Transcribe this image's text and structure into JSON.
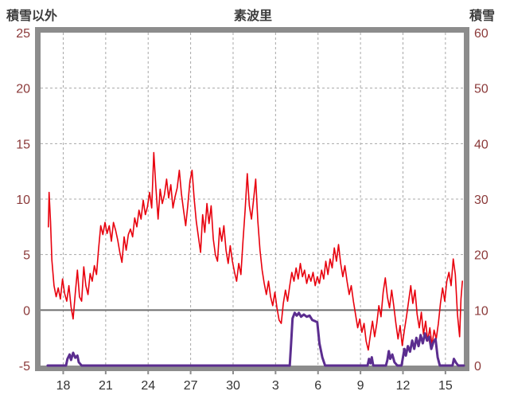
{
  "chart_data": {
    "type": "line",
    "title": "素波里",
    "left_axis": {
      "label": "積雪以外",
      "min": -5,
      "max": 25,
      "ticks": [
        25,
        20,
        15,
        10,
        5,
        0,
        -5
      ]
    },
    "right_axis": {
      "label": "積雪",
      "min": 0,
      "max": 60,
      "ticks": [
        60,
        50,
        40,
        30,
        20,
        10,
        0
      ]
    },
    "x_axis": {
      "min": 16.4,
      "max": 46.3,
      "tick_positions": [
        18,
        21,
        24,
        27,
        30,
        33,
        36,
        39,
        42,
        45
      ],
      "tick_labels": [
        "18",
        "21",
        "24",
        "27",
        "30",
        "3",
        "6",
        "9",
        "12",
        "15"
      ]
    },
    "grid": {
      "vertical": "dashed",
      "horizontal": "dashed",
      "zero_line": "solid"
    },
    "colors": {
      "frame": "#8c8c8c",
      "grid": "#a8a8a8",
      "zero_line": "#6e6e6e",
      "y_tick_text": "#8b3a3a",
      "x_tick_text": "#333333",
      "red_series": "#e8000d",
      "purple_series": "#5b2d8f"
    },
    "series": [
      {
        "name": "積雪以外",
        "data_name": "non-snow-series-line",
        "axis": "left",
        "color": "#e8000d",
        "stroke_width": 1.6,
        "points": [
          [
            16.95,
            7.5
          ],
          [
            17.0,
            10.6
          ],
          [
            17.1,
            8.0
          ],
          [
            17.2,
            4.5
          ],
          [
            17.35,
            2.2
          ],
          [
            17.5,
            1.2
          ],
          [
            17.65,
            2.0
          ],
          [
            17.8,
            1.0
          ],
          [
            17.95,
            2.8
          ],
          [
            18.1,
            1.5
          ],
          [
            18.25,
            0.8
          ],
          [
            18.4,
            2.2
          ],
          [
            18.55,
            0.3
          ],
          [
            18.7,
            -0.8
          ],
          [
            18.85,
            1.5
          ],
          [
            19.0,
            3.6
          ],
          [
            19.15,
            1.2
          ],
          [
            19.3,
            0.8
          ],
          [
            19.45,
            3.9
          ],
          [
            19.6,
            2.2
          ],
          [
            19.75,
            1.4
          ],
          [
            19.9,
            3.3
          ],
          [
            20.05,
            2.6
          ],
          [
            20.2,
            4.0
          ],
          [
            20.35,
            3.2
          ],
          [
            20.5,
            5.5
          ],
          [
            20.65,
            7.6
          ],
          [
            20.8,
            6.8
          ],
          [
            20.95,
            7.9
          ],
          [
            21.1,
            6.9
          ],
          [
            21.25,
            7.6
          ],
          [
            21.4,
            6.2
          ],
          [
            21.55,
            7.9
          ],
          [
            21.7,
            7.2
          ],
          [
            21.85,
            6.3
          ],
          [
            22.0,
            5.2
          ],
          [
            22.15,
            4.3
          ],
          [
            22.3,
            6.6
          ],
          [
            22.45,
            5.4
          ],
          [
            22.6,
            6.8
          ],
          [
            22.75,
            7.3
          ],
          [
            22.9,
            6.6
          ],
          [
            23.05,
            8.3
          ],
          [
            23.2,
            7.5
          ],
          [
            23.35,
            9.0
          ],
          [
            23.5,
            8.2
          ],
          [
            23.65,
            9.9
          ],
          [
            23.8,
            8.6
          ],
          [
            23.95,
            9.3
          ],
          [
            24.1,
            10.6
          ],
          [
            24.25,
            9.2
          ],
          [
            24.4,
            14.2
          ],
          [
            24.55,
            11.0
          ],
          [
            24.7,
            8.2
          ],
          [
            24.85,
            10.9
          ],
          [
            25.0,
            9.6
          ],
          [
            25.15,
            10.4
          ],
          [
            25.3,
            11.8
          ],
          [
            25.45,
            10.1
          ],
          [
            25.6,
            11.3
          ],
          [
            25.75,
            9.2
          ],
          [
            25.9,
            10.2
          ],
          [
            26.05,
            11.0
          ],
          [
            26.2,
            12.6
          ],
          [
            26.35,
            10.5
          ],
          [
            26.5,
            9.0
          ],
          [
            26.65,
            7.6
          ],
          [
            26.8,
            9.4
          ],
          [
            26.95,
            11.6
          ],
          [
            27.1,
            12.6
          ],
          [
            27.25,
            10.0
          ],
          [
            27.4,
            8.0
          ],
          [
            27.55,
            6.6
          ],
          [
            27.7,
            5.2
          ],
          [
            27.85,
            8.6
          ],
          [
            28.0,
            7.0
          ],
          [
            28.15,
            9.6
          ],
          [
            28.3,
            7.8
          ],
          [
            28.45,
            9.4
          ],
          [
            28.6,
            6.4
          ],
          [
            28.75,
            5.0
          ],
          [
            28.9,
            4.4
          ],
          [
            29.05,
            7.4
          ],
          [
            29.2,
            6.2
          ],
          [
            29.35,
            7.6
          ],
          [
            29.5,
            5.4
          ],
          [
            29.65,
            4.2
          ],
          [
            29.8,
            5.8
          ],
          [
            29.95,
            4.4
          ],
          [
            30.1,
            3.4
          ],
          [
            30.25,
            2.6
          ],
          [
            30.4,
            4.2
          ],
          [
            30.55,
            3.2
          ],
          [
            30.7,
            6.2
          ],
          [
            30.85,
            9.0
          ],
          [
            31.0,
            12.3
          ],
          [
            31.15,
            9.4
          ],
          [
            31.3,
            8.2
          ],
          [
            31.45,
            10.0
          ],
          [
            31.6,
            11.8
          ],
          [
            31.75,
            8.0
          ],
          [
            31.9,
            5.4
          ],
          [
            32.05,
            3.6
          ],
          [
            32.2,
            2.4
          ],
          [
            32.35,
            1.4
          ],
          [
            32.5,
            2.6
          ],
          [
            32.65,
            1.2
          ],
          [
            32.8,
            0.4
          ],
          [
            32.95,
            1.6
          ],
          [
            33.1,
            0.2
          ],
          [
            33.25,
            -0.9
          ],
          [
            33.4,
            -1.2
          ],
          [
            33.55,
            0.6
          ],
          [
            33.7,
            1.8
          ],
          [
            33.85,
            0.8
          ],
          [
            34.0,
            2.2
          ],
          [
            34.15,
            3.4
          ],
          [
            34.3,
            2.6
          ],
          [
            34.45,
            3.8
          ],
          [
            34.6,
            2.8
          ],
          [
            34.75,
            4.2
          ],
          [
            34.9,
            3.0
          ],
          [
            35.05,
            3.6
          ],
          [
            35.2,
            2.4
          ],
          [
            35.35,
            3.2
          ],
          [
            35.5,
            2.6
          ],
          [
            35.65,
            3.4
          ],
          [
            35.8,
            2.2
          ],
          [
            35.95,
            3.0
          ],
          [
            36.1,
            2.4
          ],
          [
            36.25,
            3.6
          ],
          [
            36.4,
            2.8
          ],
          [
            36.55,
            4.4
          ],
          [
            36.7,
            3.2
          ],
          [
            36.85,
            4.6
          ],
          [
            37.0,
            3.8
          ],
          [
            37.15,
            5.6
          ],
          [
            37.3,
            4.4
          ],
          [
            37.45,
            5.9
          ],
          [
            37.6,
            4.2
          ],
          [
            37.75,
            3.0
          ],
          [
            37.9,
            4.0
          ],
          [
            38.05,
            2.6
          ],
          [
            38.2,
            1.4
          ],
          [
            38.35,
            2.2
          ],
          [
            38.5,
            0.8
          ],
          [
            38.65,
            -0.4
          ],
          [
            38.8,
            -1.6
          ],
          [
            38.95,
            -0.8
          ],
          [
            39.1,
            -2.0
          ],
          [
            39.25,
            -1.2
          ],
          [
            39.4,
            -2.8
          ],
          [
            39.55,
            -3.6
          ],
          [
            39.7,
            -2.2
          ],
          [
            39.85,
            -1.0
          ],
          [
            40.0,
            -2.4
          ],
          [
            40.15,
            -1.2
          ],
          [
            40.3,
            0.4
          ],
          [
            40.45,
            -0.6
          ],
          [
            40.6,
            1.6
          ],
          [
            40.75,
            2.9
          ],
          [
            40.9,
            1.2
          ],
          [
            41.05,
            0.2
          ],
          [
            41.2,
            1.8
          ],
          [
            41.35,
            0.4
          ],
          [
            41.5,
            -1.2
          ],
          [
            41.65,
            -2.6
          ],
          [
            41.8,
            -1.4
          ],
          [
            41.95,
            -3.2
          ],
          [
            42.1,
            -1.8
          ],
          [
            42.25,
            -0.6
          ],
          [
            42.4,
            0.8
          ],
          [
            42.55,
            2.2
          ],
          [
            42.7,
            0.6
          ],
          [
            42.85,
            1.8
          ],
          [
            43.0,
            -0.4
          ],
          [
            43.15,
            -1.6
          ],
          [
            43.3,
            -0.2
          ],
          [
            43.45,
            -2.2
          ],
          [
            43.6,
            -1.0
          ],
          [
            43.75,
            -2.8
          ],
          [
            43.9,
            -1.6
          ],
          [
            44.05,
            -3.2
          ],
          [
            44.2,
            -1.8
          ],
          [
            44.35,
            -2.6
          ],
          [
            44.5,
            -1.2
          ],
          [
            44.65,
            0.6
          ],
          [
            44.8,
            2.0
          ],
          [
            44.95,
            0.8
          ],
          [
            45.1,
            2.6
          ],
          [
            45.25,
            3.4
          ],
          [
            45.4,
            2.2
          ],
          [
            45.55,
            4.6
          ],
          [
            45.7,
            3.2
          ],
          [
            45.85,
            -0.4
          ],
          [
            46.0,
            -2.4
          ],
          [
            46.1,
            1.0
          ],
          [
            46.2,
            2.6
          ]
        ]
      },
      {
        "name": "積雪",
        "data_name": "snow-depth-series-line",
        "axis": "right",
        "color": "#5b2d8f",
        "stroke_width": 3,
        "points": [
          [
            16.9,
            0
          ],
          [
            18.2,
            0
          ],
          [
            18.3,
            1.2
          ],
          [
            18.45,
            2.0
          ],
          [
            18.55,
            1.0
          ],
          [
            18.7,
            2.3
          ],
          [
            18.85,
            1.4
          ],
          [
            19.0,
            1.8
          ],
          [
            19.1,
            0.6
          ],
          [
            19.3,
            0
          ],
          [
            34.0,
            0
          ],
          [
            34.1,
            4.0
          ],
          [
            34.2,
            8.5
          ],
          [
            34.35,
            9.5
          ],
          [
            34.5,
            9.0
          ],
          [
            34.65,
            9.5
          ],
          [
            34.8,
            8.8
          ],
          [
            35.0,
            9.2
          ],
          [
            35.2,
            8.8
          ],
          [
            35.4,
            9.0
          ],
          [
            35.6,
            8.2
          ],
          [
            35.8,
            8.0
          ],
          [
            35.95,
            7.8
          ],
          [
            36.1,
            4.0
          ],
          [
            36.3,
            1.5
          ],
          [
            36.5,
            0
          ],
          [
            39.5,
            0
          ],
          [
            39.6,
            1.2
          ],
          [
            39.7,
            0.4
          ],
          [
            39.8,
            1.5
          ],
          [
            39.9,
            0
          ],
          [
            40.8,
            0
          ],
          [
            40.9,
            1.0
          ],
          [
            41.0,
            2.6
          ],
          [
            41.1,
            1.2
          ],
          [
            41.25,
            2.0
          ],
          [
            41.4,
            0.6
          ],
          [
            41.6,
            0
          ],
          [
            41.9,
            0
          ],
          [
            42.0,
            1.5
          ],
          [
            42.1,
            3.0
          ],
          [
            42.2,
            1.8
          ],
          [
            42.35,
            3.5
          ],
          [
            42.5,
            2.5
          ],
          [
            42.65,
            4.5
          ],
          [
            42.8,
            3.0
          ],
          [
            42.95,
            5.0
          ],
          [
            43.1,
            3.5
          ],
          [
            43.25,
            5.5
          ],
          [
            43.4,
            4.0
          ],
          [
            43.55,
            5.8
          ],
          [
            43.7,
            4.5
          ],
          [
            43.85,
            5.2
          ],
          [
            44.0,
            3.0
          ],
          [
            44.15,
            4.2
          ],
          [
            44.3,
            4.8
          ],
          [
            44.45,
            1.5
          ],
          [
            44.6,
            0
          ],
          [
            45.5,
            0
          ],
          [
            45.6,
            1.2
          ],
          [
            45.75,
            0.5
          ],
          [
            45.9,
            0
          ],
          [
            46.3,
            0
          ]
        ]
      }
    ]
  }
}
